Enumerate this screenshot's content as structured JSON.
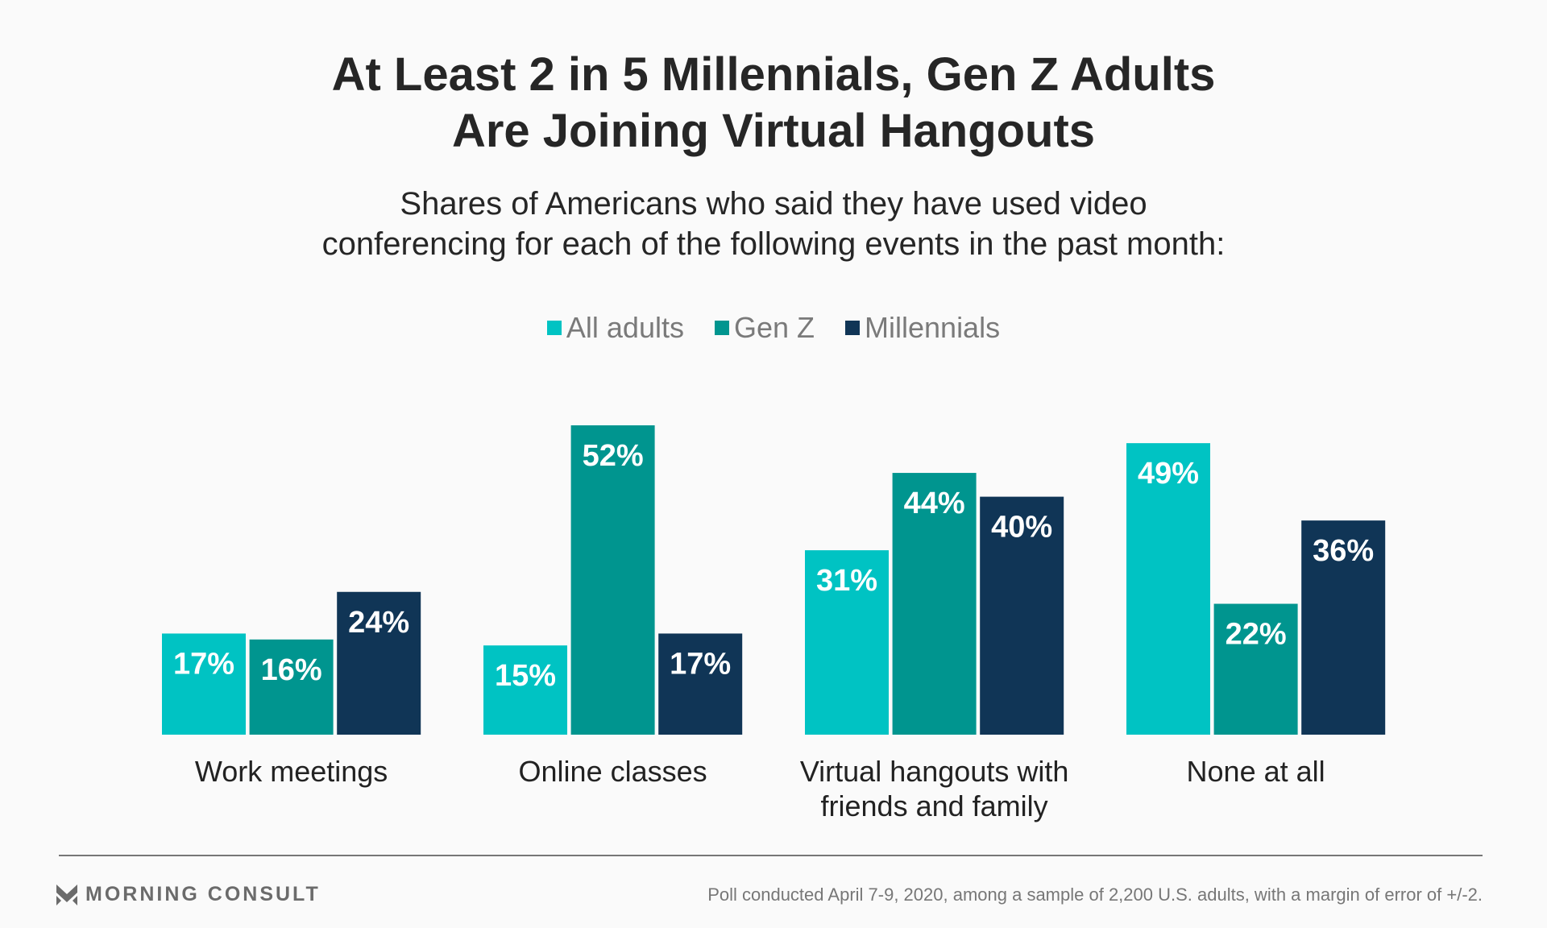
{
  "chart_data": {
    "type": "bar",
    "title": "At Least 2 in 5 Millennials, Gen Z Adults Are Joining Virtual Hangouts",
    "title_lines": [
      "At Least 2 in 5 Millennials, Gen Z Adults",
      "Are Joining Virtual Hangouts"
    ],
    "subtitle_lines": [
      "Shares of Americans who said they have used video",
      "conferencing for each of the following events in the past month:"
    ],
    "categories": [
      [
        "Work meetings"
      ],
      [
        "Online classes"
      ],
      [
        "Virtual hangouts with",
        "friends and family"
      ],
      [
        "None at all"
      ]
    ],
    "series": [
      {
        "name": "All adults",
        "color": "#00C3C3",
        "values": [
          17,
          15,
          31,
          49
        ]
      },
      {
        "name": "Gen Z",
        "color": "#00958F",
        "values": [
          16,
          52,
          44,
          22
        ]
      },
      {
        "name": "Millennials",
        "color": "#103556",
        "values": [
          24,
          17,
          40,
          36
        ]
      }
    ],
    "value_suffix": "%",
    "ylim": [
      0,
      52
    ],
    "grid": false,
    "legend_position": "top-center"
  },
  "footer": {
    "brand": "MORNING CONSULT",
    "note": "Poll conducted April 7-9, 2020, among a sample of 2,200 U.S. adults, with a margin of error of +/-2."
  }
}
